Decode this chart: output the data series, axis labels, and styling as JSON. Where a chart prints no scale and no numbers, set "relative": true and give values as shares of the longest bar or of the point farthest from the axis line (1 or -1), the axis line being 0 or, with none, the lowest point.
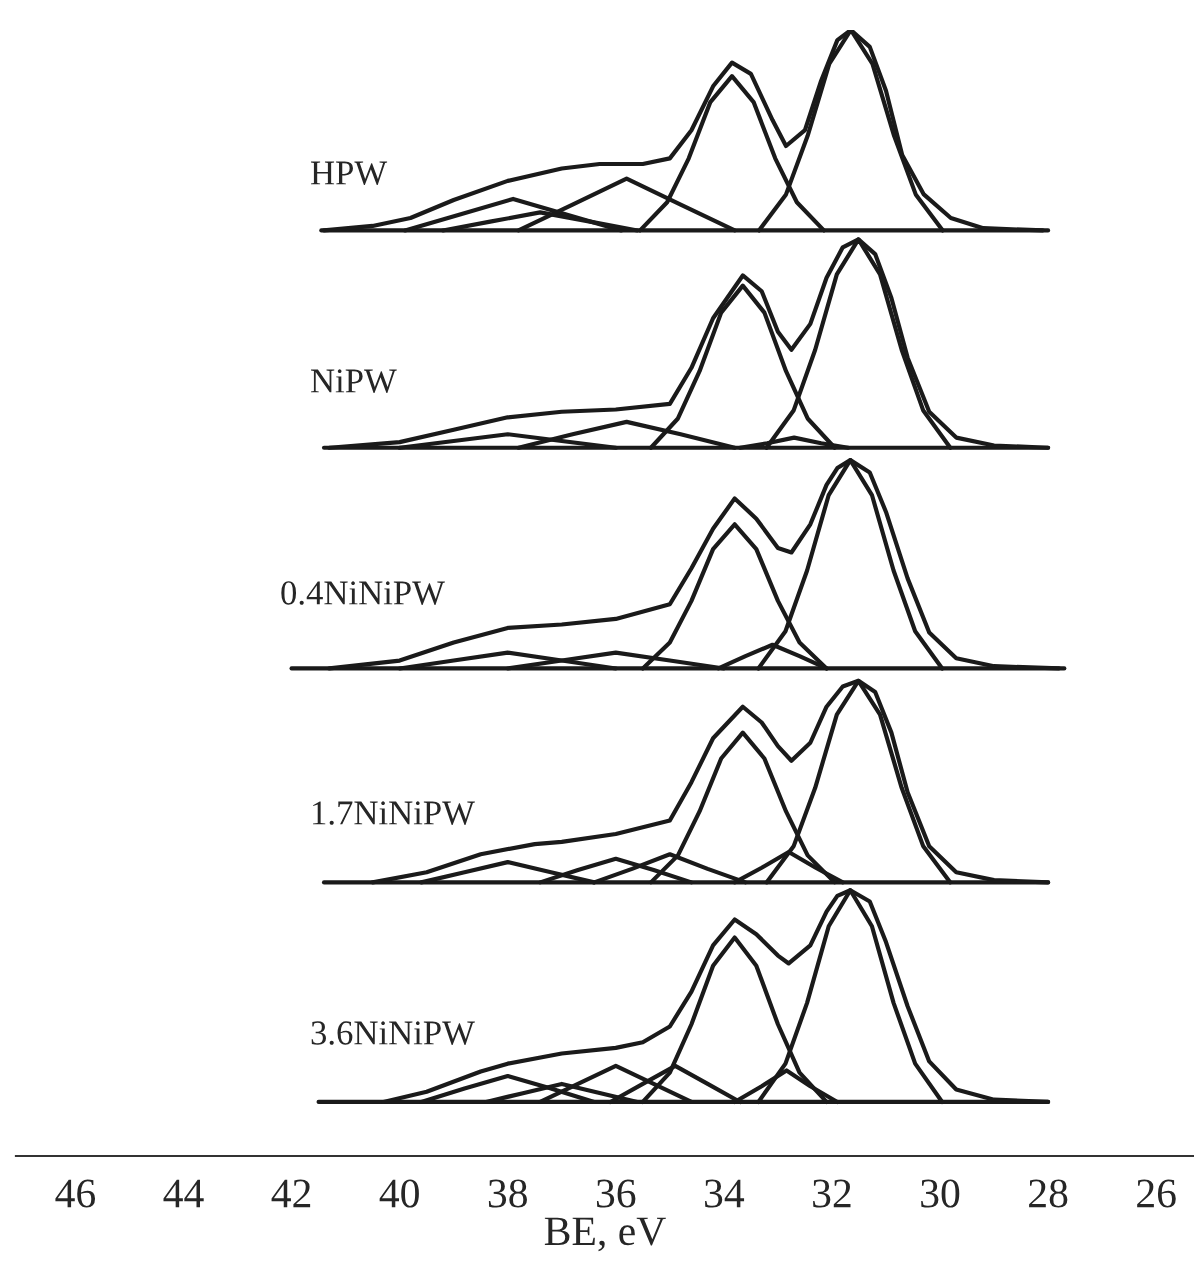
{
  "chart_data": {
    "type": "line",
    "relative": true,
    "xlabel": "BE, eV",
    "xlim": [
      47.1,
      25.3
    ],
    "xticks": [
      46,
      44,
      42,
      40,
      38,
      36,
      34,
      32,
      30,
      28,
      26
    ],
    "tick_labels": "x",
    "marker": "none",
    "line_style": "solid",
    "annotations": [
      "HPW",
      "NiPW",
      "0.4NiNiPW",
      "1.7NiNiPW",
      "3.6NiNiPW"
    ],
    "series": [
      {
        "color": "#1a1a1a",
        "x": [
          41.45,
          28.0
        ],
        "values": [
          0.822,
          0.822
        ]
      },
      {
        "color": "#1a1a1a",
        "x": [
          41.4,
          40.5,
          39.8,
          39,
          38,
          37,
          36.3,
          35.5,
          35,
          34.6,
          34.2,
          33.85,
          33.5,
          33.1,
          32.85,
          32.5,
          32.2,
          31.9,
          31.65,
          31.3,
          31,
          30.7,
          30.3,
          29.8,
          29.2,
          28.1
        ],
        "values": [
          0.822,
          0.826,
          0.833,
          0.849,
          0.866,
          0.877,
          0.881,
          0.881,
          0.886,
          0.911,
          0.95,
          0.971,
          0.961,
          0.92,
          0.897,
          0.911,
          0.955,
          0.991,
          1.0,
          0.985,
          0.946,
          0.889,
          0.854,
          0.833,
          0.824,
          0.822
        ]
      },
      {
        "color": "#1a1a1a",
        "x": [
          33.35,
          32.85,
          32.45,
          32.05,
          31.65,
          31.25,
          30.85,
          30.45,
          29.95
        ],
        "values": [
          0.822,
          0.854,
          0.906,
          0.97,
          1.0,
          0.97,
          0.906,
          0.854,
          0.822
        ]
      },
      {
        "color": "#1a1a1a",
        "x": [
          35.55,
          35.05,
          34.65,
          34.25,
          33.85,
          33.45,
          33.05,
          32.65,
          32.15
        ],
        "values": [
          0.822,
          0.847,
          0.886,
          0.936,
          0.959,
          0.936,
          0.886,
          0.847,
          0.822
        ]
      },
      {
        "color": "#1a1a1a",
        "x": [
          37.8,
          36.8,
          35.8,
          34.8,
          33.8
        ],
        "values": [
          0.822,
          0.845,
          0.868,
          0.845,
          0.822
        ]
      },
      {
        "color": "#1a1a1a",
        "x": [
          39.9,
          38.9,
          37.9,
          36.9,
          35.9
        ],
        "values": [
          0.822,
          0.836,
          0.85,
          0.836,
          0.822
        ]
      },
      {
        "color": "#1a1a1a",
        "x": [
          39.2,
          38.3,
          37.4,
          36.5,
          35.6
        ],
        "values": [
          0.822,
          0.83,
          0.838,
          0.83,
          0.822
        ]
      },
      {
        "color": "#1a1a1a",
        "x": [
          41.4,
          28.0
        ],
        "values": [
          0.629,
          0.629
        ]
      },
      {
        "color": "#1a1a1a",
        "x": [
          41.3,
          40,
          39,
          38,
          37,
          36,
          35,
          34.6,
          34.2,
          33.65,
          33.3,
          33,
          32.75,
          32.4,
          32.1,
          31.8,
          31.51,
          31.2,
          30.9,
          30.6,
          30.2,
          29.7,
          29,
          28
        ],
        "values": [
          0.629,
          0.634,
          0.645,
          0.656,
          0.661,
          0.663,
          0.668,
          0.7,
          0.744,
          0.782,
          0.768,
          0.732,
          0.716,
          0.739,
          0.78,
          0.807,
          0.814,
          0.801,
          0.762,
          0.709,
          0.661,
          0.638,
          0.631,
          0.629
        ]
      },
      {
        "color": "#1a1a1a",
        "x": [
          33.21,
          32.71,
          32.31,
          31.91,
          31.51,
          31.11,
          30.71,
          30.31,
          29.81
        ],
        "values": [
          0.629,
          0.662,
          0.716,
          0.783,
          0.814,
          0.783,
          0.716,
          0.662,
          0.629
        ]
      },
      {
        "color": "#1a1a1a",
        "x": [
          35.35,
          34.85,
          34.45,
          34.05,
          33.65,
          33.25,
          32.85,
          32.45,
          31.95
        ],
        "values": [
          0.629,
          0.655,
          0.697,
          0.749,
          0.773,
          0.749,
          0.697,
          0.655,
          0.629
        ]
      },
      {
        "color": "#1a1a1a",
        "x": [
          37.8,
          36.8,
          35.8,
          34.8,
          33.8
        ],
        "values": [
          0.629,
          0.641,
          0.652,
          0.641,
          0.629
        ]
      },
      {
        "color": "#1a1a1a",
        "x": [
          40,
          39,
          38,
          37,
          36
        ],
        "values": [
          0.629,
          0.635,
          0.641,
          0.635,
          0.629
        ]
      },
      {
        "color": "#1a1a1a",
        "x": [
          33.7,
          33.2,
          32.7,
          32.2,
          31.7
        ],
        "values": [
          0.629,
          0.633,
          0.638,
          0.633,
          0.629
        ]
      },
      {
        "color": "#1a1a1a",
        "x": [
          42.0,
          27.7
        ],
        "values": [
          0.433,
          0.433
        ]
      },
      {
        "color": "#1a1a1a",
        "x": [
          41.3,
          40,
          39,
          38,
          37,
          36,
          35,
          34.6,
          34.2,
          33.8,
          33.4,
          33,
          32.75,
          32.4,
          32.1,
          31.9,
          31.66,
          31.3,
          31,
          30.6,
          30.2,
          29.7,
          29,
          27.8
        ],
        "values": [
          0.433,
          0.44,
          0.456,
          0.469,
          0.472,
          0.477,
          0.49,
          0.522,
          0.557,
          0.584,
          0.566,
          0.54,
          0.536,
          0.561,
          0.596,
          0.611,
          0.618,
          0.607,
          0.572,
          0.513,
          0.465,
          0.442,
          0.435,
          0.433
        ]
      },
      {
        "color": "#1a1a1a",
        "x": [
          33.36,
          32.86,
          32.46,
          32.06,
          31.66,
          31.26,
          30.86,
          30.46,
          29.96
        ],
        "values": [
          0.433,
          0.466,
          0.52,
          0.587,
          0.618,
          0.587,
          0.52,
          0.466,
          0.433
        ]
      },
      {
        "color": "#1a1a1a",
        "x": [
          35.5,
          35.0,
          34.6,
          34.2,
          33.8,
          33.4,
          33.0,
          32.6,
          32.1
        ],
        "values": [
          0.433,
          0.456,
          0.493,
          0.539,
          0.561,
          0.539,
          0.493,
          0.456,
          0.433
        ]
      },
      {
        "color": "#1a1a1a",
        "x": [
          34.1,
          33.6,
          33.1,
          32.6,
          32.1
        ],
        "values": [
          0.433,
          0.444,
          0.454,
          0.444,
          0.433
        ]
      },
      {
        "color": "#1a1a1a",
        "x": [
          40,
          39,
          38,
          37,
          36
        ],
        "values": [
          0.433,
          0.44,
          0.447,
          0.44,
          0.433
        ]
      },
      {
        "color": "#1a1a1a",
        "x": [
          38,
          37,
          36,
          35,
          34
        ],
        "values": [
          0.433,
          0.44,
          0.447,
          0.44,
          0.433
        ]
      },
      {
        "color": "#1a1a1a",
        "x": [
          41.4,
          28.0
        ],
        "values": [
          0.243,
          0.243
        ]
      },
      {
        "color": "#1a1a1a",
        "x": [
          40.5,
          39.5,
          38.5,
          37.5,
          37,
          36,
          35,
          34.6,
          34.2,
          33.65,
          33.3,
          33,
          32.75,
          32.4,
          32.1,
          31.8,
          31.51,
          31.2,
          30.9,
          30.6,
          30.2,
          29.7,
          29,
          28
        ],
        "values": [
          0.243,
          0.252,
          0.268,
          0.277,
          0.279,
          0.286,
          0.298,
          0.332,
          0.371,
          0.399,
          0.385,
          0.364,
          0.351,
          0.367,
          0.399,
          0.417,
          0.422,
          0.412,
          0.376,
          0.323,
          0.275,
          0.252,
          0.245,
          0.243
        ]
      },
      {
        "color": "#1a1a1a",
        "x": [
          33.21,
          32.71,
          32.31,
          31.91,
          31.51,
          31.11,
          30.71,
          30.31,
          29.81
        ],
        "values": [
          0.243,
          0.275,
          0.327,
          0.392,
          0.422,
          0.392,
          0.327,
          0.275,
          0.243
        ]
      },
      {
        "color": "#1a1a1a",
        "x": [
          35.35,
          34.85,
          34.45,
          34.05,
          33.65,
          33.25,
          32.85,
          32.45,
          31.95
        ],
        "values": [
          0.243,
          0.267,
          0.306,
          0.353,
          0.376,
          0.353,
          0.306,
          0.267,
          0.243
        ]
      },
      {
        "color": "#1a1a1a",
        "x": [
          33.8,
          33.3,
          32.8,
          32.3,
          31.8
        ],
        "values": [
          0.243,
          0.256,
          0.27,
          0.256,
          0.243
        ]
      },
      {
        "color": "#1a1a1a",
        "x": [
          36.4,
          35.7,
          35,
          34.3,
          33.6
        ],
        "values": [
          0.243,
          0.255,
          0.268,
          0.255,
          0.243
        ]
      },
      {
        "color": "#1a1a1a",
        "x": [
          37.4,
          36.7,
          36,
          35.3,
          34.6
        ],
        "values": [
          0.243,
          0.254,
          0.264,
          0.254,
          0.243
        ]
      },
      {
        "color": "#1a1a1a",
        "x": [
          39.6,
          38.8,
          38,
          37.2,
          36.4
        ],
        "values": [
          0.243,
          0.252,
          0.261,
          0.252,
          0.243
        ]
      },
      {
        "color": "#1a1a1a",
        "x": [
          41.5,
          28.0
        ],
        "values": [
          0.048,
          0.048
        ]
      },
      {
        "color": "#1a1a1a",
        "x": [
          40.3,
          39.5,
          38.5,
          38,
          37,
          36,
          35.5,
          35,
          34.6,
          34.2,
          33.8,
          33.4,
          33,
          32.8,
          32.4,
          32.1,
          31.9,
          31.66,
          31.3,
          31,
          30.6,
          30.2,
          29.7,
          29,
          28
        ],
        "values": [
          0.048,
          0.057,
          0.075,
          0.082,
          0.091,
          0.096,
          0.101,
          0.115,
          0.146,
          0.187,
          0.21,
          0.197,
          0.178,
          0.171,
          0.187,
          0.217,
          0.231,
          0.236,
          0.226,
          0.19,
          0.133,
          0.084,
          0.059,
          0.05,
          0.048
        ]
      },
      {
        "color": "#1a1a1a",
        "x": [
          33.36,
          32.86,
          32.46,
          32.06,
          31.66,
          31.26,
          30.86,
          30.46,
          29.96
        ],
        "values": [
          0.048,
          0.082,
          0.136,
          0.204,
          0.236,
          0.204,
          0.136,
          0.082,
          0.048
        ]
      },
      {
        "color": "#1a1a1a",
        "x": [
          35.5,
          35.0,
          34.6,
          34.2,
          33.8,
          33.4,
          33.0,
          32.6,
          32.1
        ],
        "values": [
          0.048,
          0.074,
          0.117,
          0.169,
          0.194,
          0.169,
          0.117,
          0.074,
          0.048
        ]
      },
      {
        "color": "#1a1a1a",
        "x": [
          33.8,
          33.3,
          32.84,
          32.4,
          31.9
        ],
        "values": [
          0.048,
          0.062,
          0.076,
          0.062,
          0.048
        ]
      },
      {
        "color": "#1a1a1a",
        "x": [
          36.1,
          35.5,
          34.9,
          34.3,
          33.7
        ],
        "values": [
          0.048,
          0.064,
          0.08,
          0.064,
          0.048
        ]
      },
      {
        "color": "#1a1a1a",
        "x": [
          37.4,
          36.7,
          36,
          35.3,
          34.6
        ],
        "values": [
          0.048,
          0.064,
          0.08,
          0.064,
          0.048
        ]
      },
      {
        "color": "#1a1a1a",
        "x": [
          39.6,
          38.8,
          38,
          37.2,
          36.4
        ],
        "values": [
          0.048,
          0.06,
          0.071,
          0.06,
          0.048
        ]
      },
      {
        "color": "#1a1a1a",
        "x": [
          38.4,
          37.7,
          37,
          36.3,
          35.6
        ],
        "values": [
          0.048,
          0.056,
          0.064,
          0.056,
          0.048
        ]
      }
    ]
  }
}
